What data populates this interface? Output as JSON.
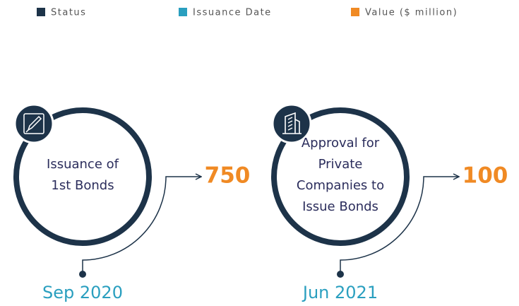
{
  "legend": [
    {
      "label": "Status",
      "color": "#1d3349"
    },
    {
      "label": "Issuance Date",
      "color": "#2a9fbf"
    },
    {
      "label": "Value ($ million)",
      "color": "#f08a24"
    }
  ],
  "milestones": [
    {
      "status": [
        "Issuance of",
        "1st Bonds"
      ],
      "date": "Sep 2020",
      "value": 750
    },
    {
      "status": [
        "Approval for",
        "Private",
        "Companies to",
        "Issue Bonds"
      ],
      "date": "Jun 2021",
      "value": 100
    }
  ]
}
